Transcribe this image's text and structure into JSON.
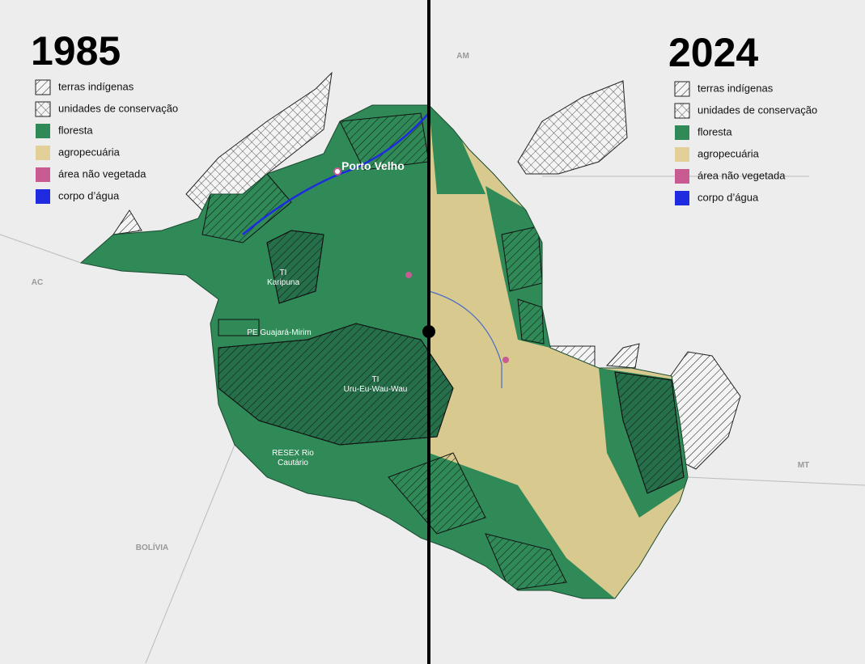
{
  "left": {
    "year": "1985",
    "legend": [
      "terras indígenas",
      "unidades de conservação",
      "floresta",
      "agropecuária",
      "área não vegetada",
      "corpo d’água"
    ]
  },
  "right": {
    "year": "2024",
    "legend": [
      "terras indígenas",
      "unidades de conservação",
      "floresta",
      "agropecuária",
      "área não vegetada",
      "corpo d’água"
    ]
  },
  "regions": [
    "AM",
    "AC",
    "MT",
    "BOLÍVIA"
  ],
  "city": "Porto Velho",
  "areas": [
    [
      "TI",
      "Karipuna"
    ],
    [
      "PE Guajará-Mirim"
    ],
    [
      "TI",
      "Uru-Eu-Wau-Wau"
    ],
    [
      "RESEX Rio",
      "Cautário"
    ]
  ]
}
